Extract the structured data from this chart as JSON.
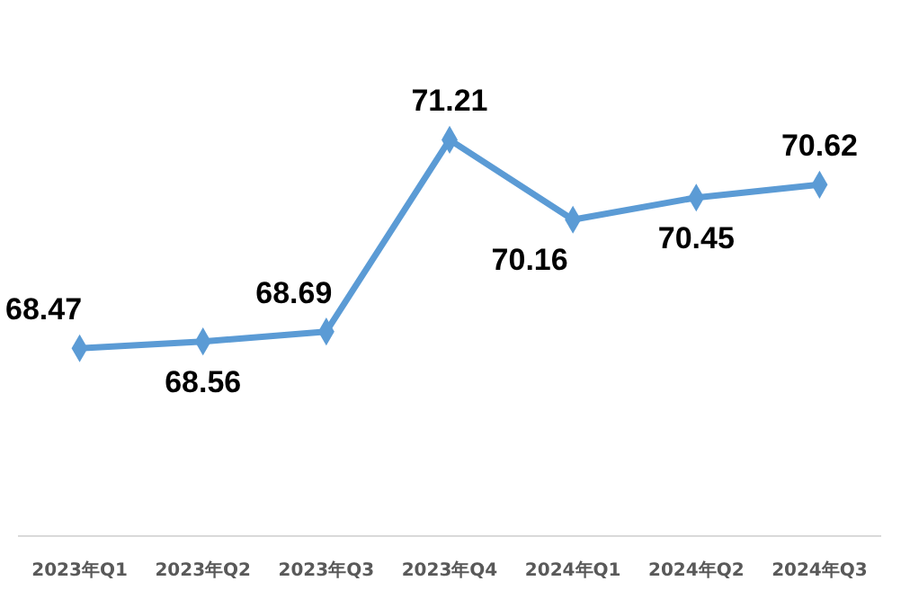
{
  "chart_data": {
    "type": "line",
    "categories": [
      "2023年Q1",
      "2023年Q2",
      "2023年Q3",
      "2023年Q4",
      "2024年Q1",
      "2024年Q2",
      "2024年Q3"
    ],
    "series": [
      {
        "color": "#5b9bd5",
        "values": [
          68.47,
          68.56,
          68.69,
          71.21,
          70.16,
          70.45,
          70.62
        ]
      }
    ],
    "data_labels": true,
    "marker": "diamond",
    "line_style": "solid"
  }
}
